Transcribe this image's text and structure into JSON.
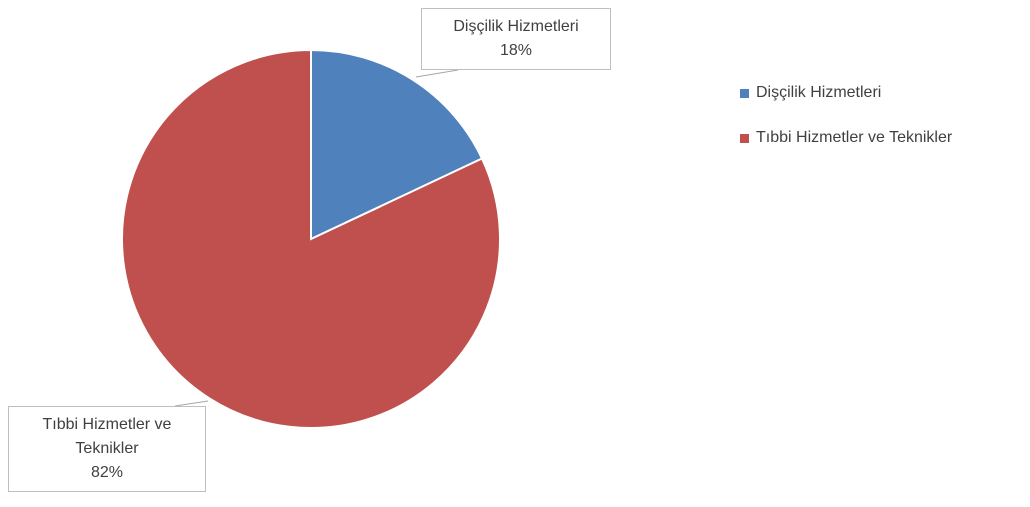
{
  "chart_data": {
    "type": "pie",
    "categories": [
      "Dişçilik Hizmetleri",
      "Tıbbi Hizmetler ve Teknikler"
    ],
    "values": [
      18,
      82
    ],
    "value_labels": [
      "18%",
      "82%"
    ],
    "colors": [
      "#4f81bd",
      "#c0504d"
    ],
    "legend": "right"
  }
}
